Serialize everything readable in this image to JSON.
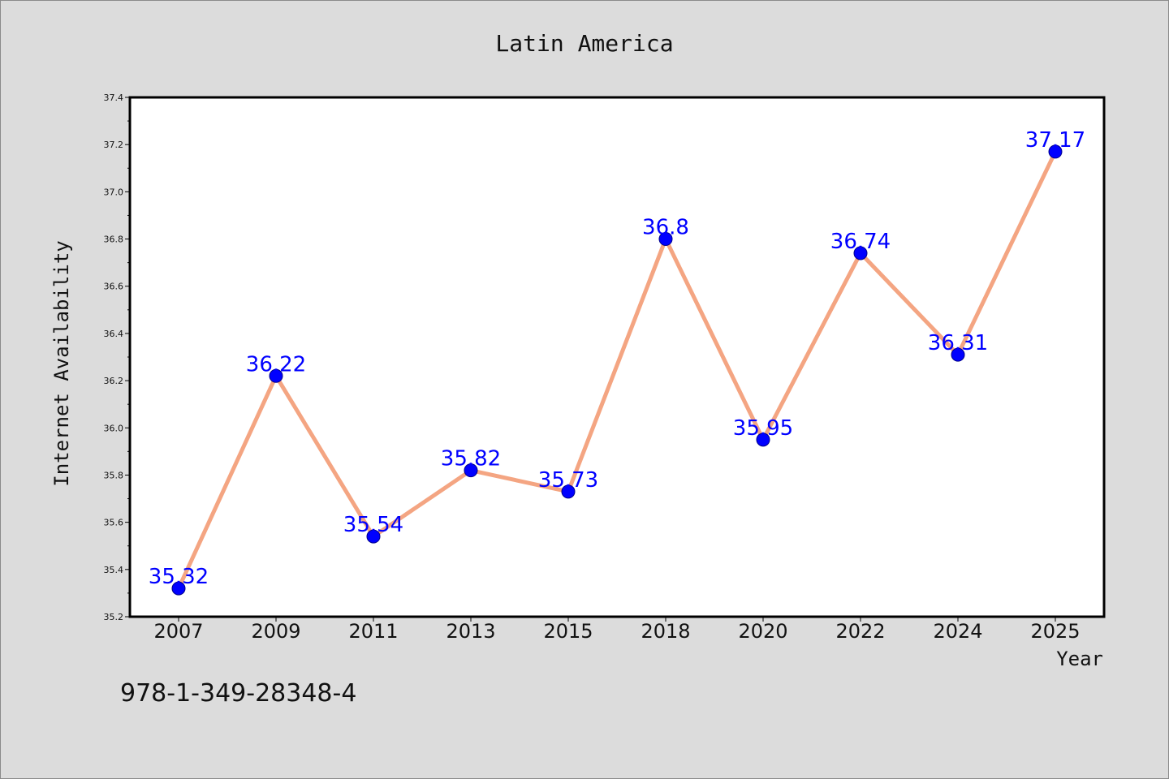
{
  "chart_data": {
    "type": "line",
    "title": "Latin America",
    "xlabel": "Year",
    "ylabel": "Internet Availability",
    "categories": [
      "2007",
      "2009",
      "2011",
      "2013",
      "2015",
      "2018",
      "2020",
      "2022",
      "2024",
      "2025"
    ],
    "series": [
      {
        "values": [
          35.32,
          36.22,
          35.54,
          35.82,
          35.73,
          36.8,
          35.95,
          36.74,
          36.31,
          37.17
        ],
        "labels": [
          "35.32",
          "36.22",
          "35.54",
          "35.82",
          "35.73",
          "36.8",
          "35.95",
          "36.74",
          "36.31",
          "37.17"
        ]
      }
    ],
    "ylim": [
      35.2,
      37.4
    ],
    "yticks": [
      "35.2",
      "35.4",
      "35.6",
      "35.8",
      "36.0",
      "36.2",
      "36.4",
      "36.6",
      "36.8",
      "37.0",
      "37.2",
      "37.4"
    ],
    "grid": false,
    "legend": "none",
    "colors": {
      "line": "#f4a582",
      "marker": "#0000ff",
      "label": "#0000ff",
      "background": "#dcdcdc",
      "plot_background": "#ffffff"
    }
  },
  "footer": {
    "isbn": "978-1-349-28348-4"
  }
}
